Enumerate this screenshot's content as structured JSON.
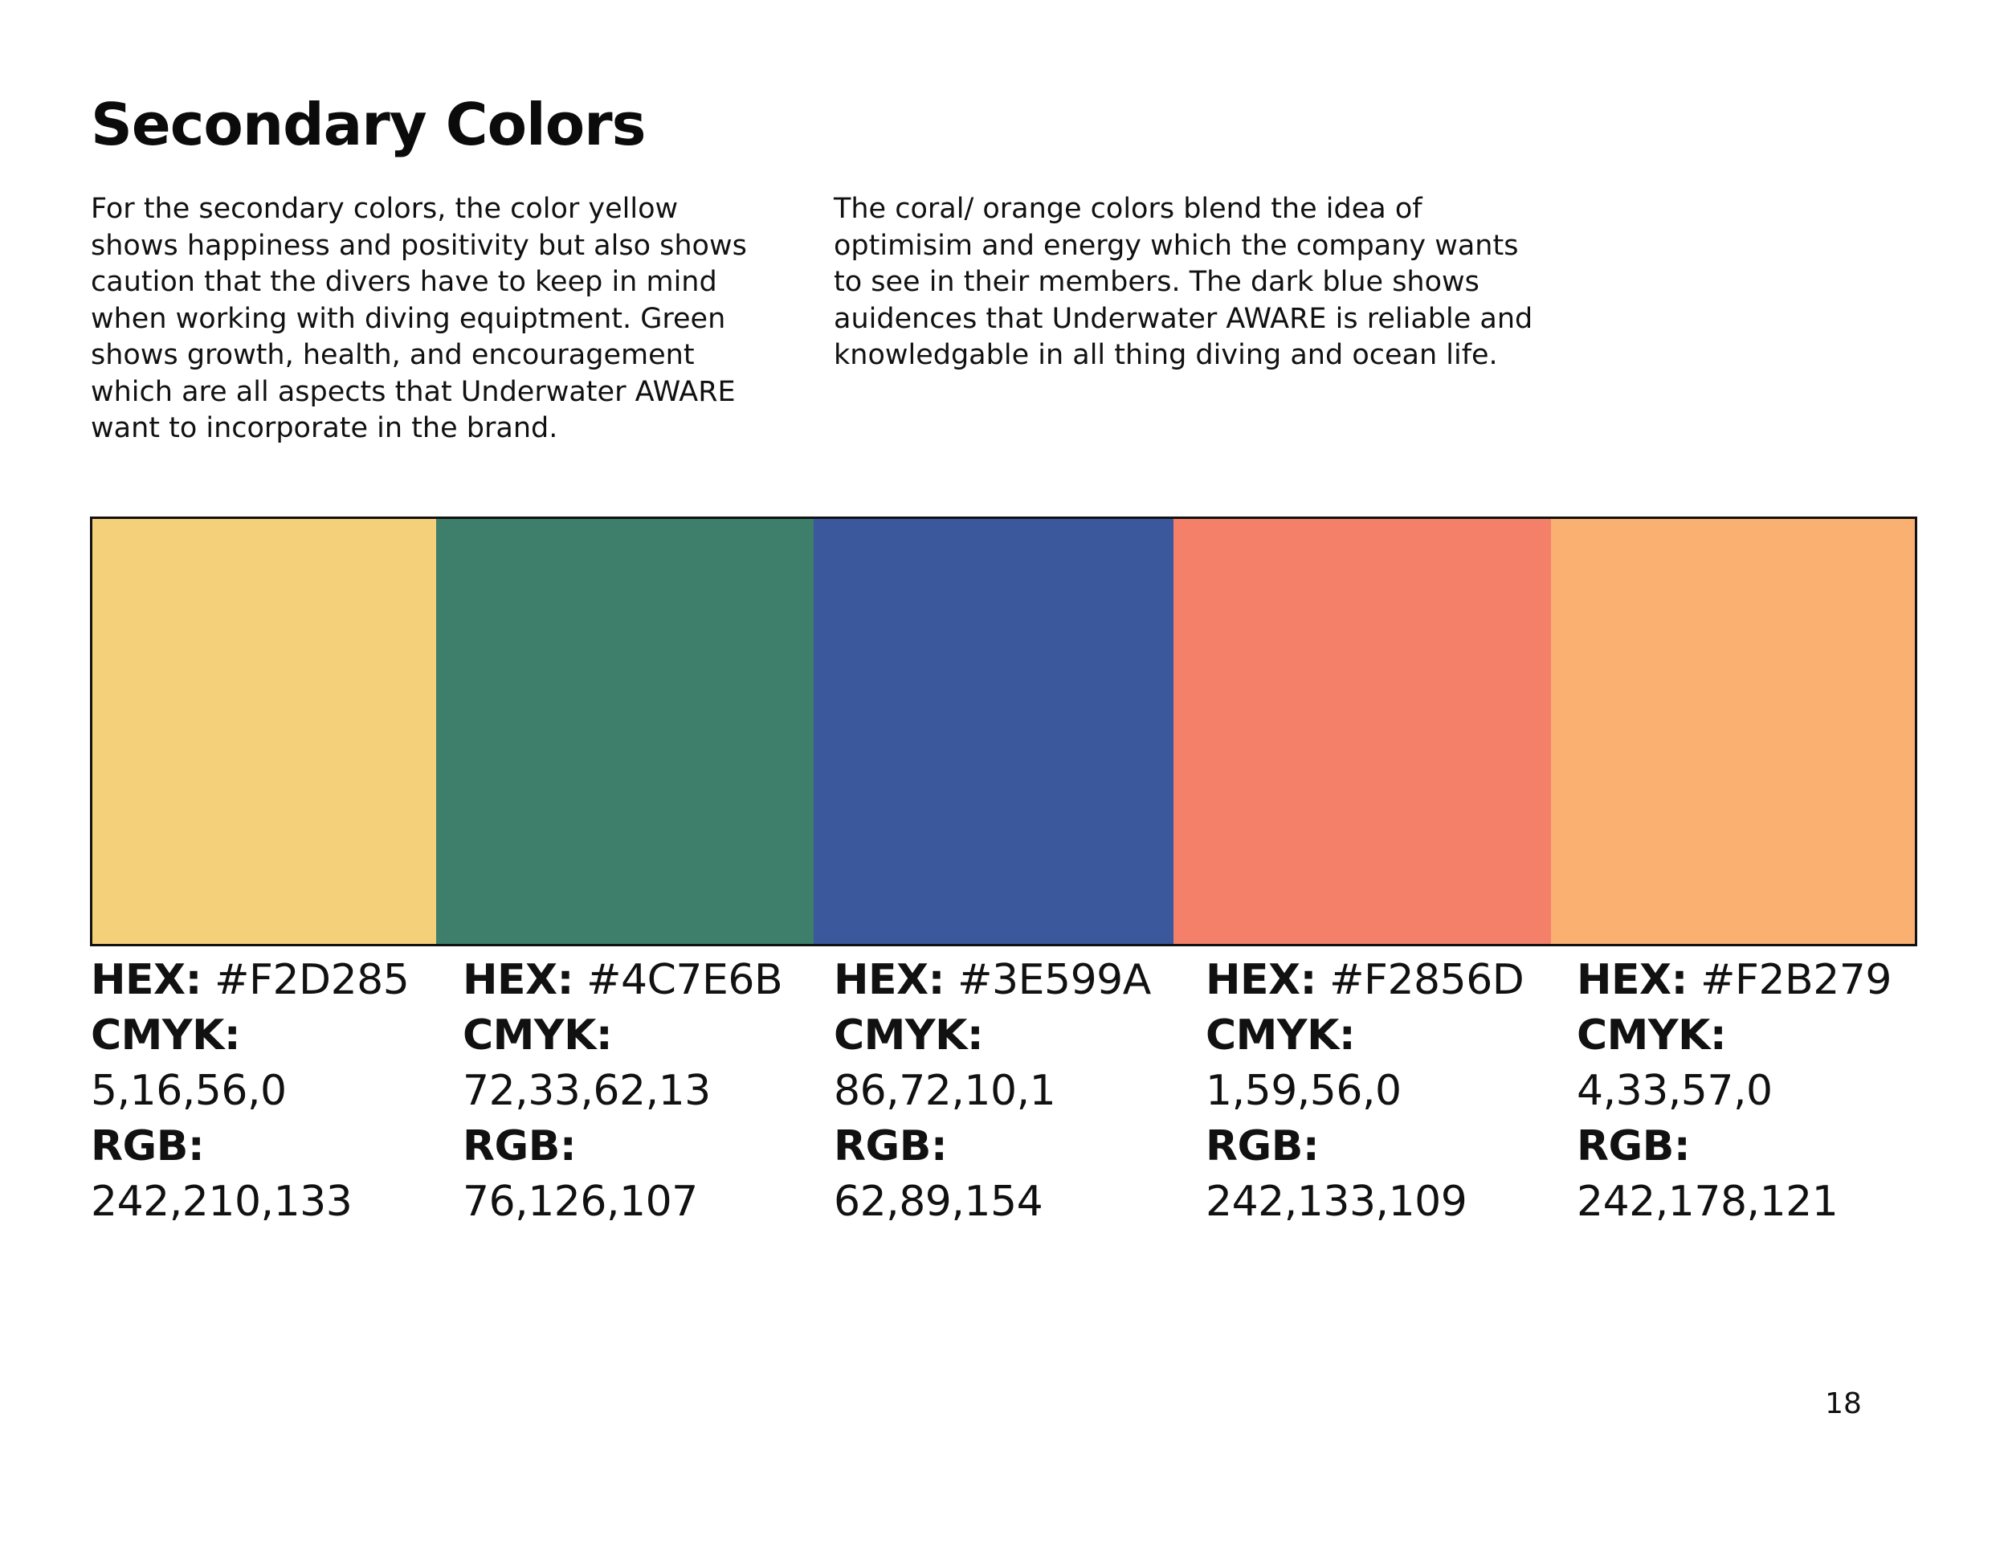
{
  "page": {
    "title": "Secondary Colors",
    "page_number": "18"
  },
  "intro": {
    "left": "For the secondary colors, the color yellow shows happiness and positivity but also shows caution that the divers have to keep in mind when working with diving equiptment. Green shows growth, health, and encouragement which are all aspects that Underwater AWARE want to incorporate in the brand.",
    "right": "The coral/ orange colors blend the idea of optimisim and energy which the company wants to see in their members. The dark blue shows auidences that Underwater AWARE is reliable and knowledgable in all thing diving and ocean life."
  },
  "labels": {
    "hex": "HEX:",
    "cmyk": "CMYK:",
    "rgb": "RGB:"
  },
  "swatches": [
    {
      "color": "#F5D07A",
      "hex": "#F2D285",
      "cmyk": "5,16,56,0",
      "rgb": "242,210,133"
    },
    {
      "color": "#3D7F6A",
      "hex": "#4C7E6B",
      "cmyk": "72,33,62,13",
      "rgb": "76,126,107"
    },
    {
      "color": "#3C589D",
      "hex": "#3E599A",
      "cmyk": "86,72,10,1",
      "rgb": "62,89,154"
    },
    {
      "color": "#F4806A",
      "hex": "#F2856D",
      "cmyk": "1,59,56,0",
      "rgb": "242,133,109"
    },
    {
      "color": "#F9B070",
      "hex": "#F2B279",
      "cmyk": "4,33,57,0",
      "rgb": "242,178,121"
    }
  ]
}
